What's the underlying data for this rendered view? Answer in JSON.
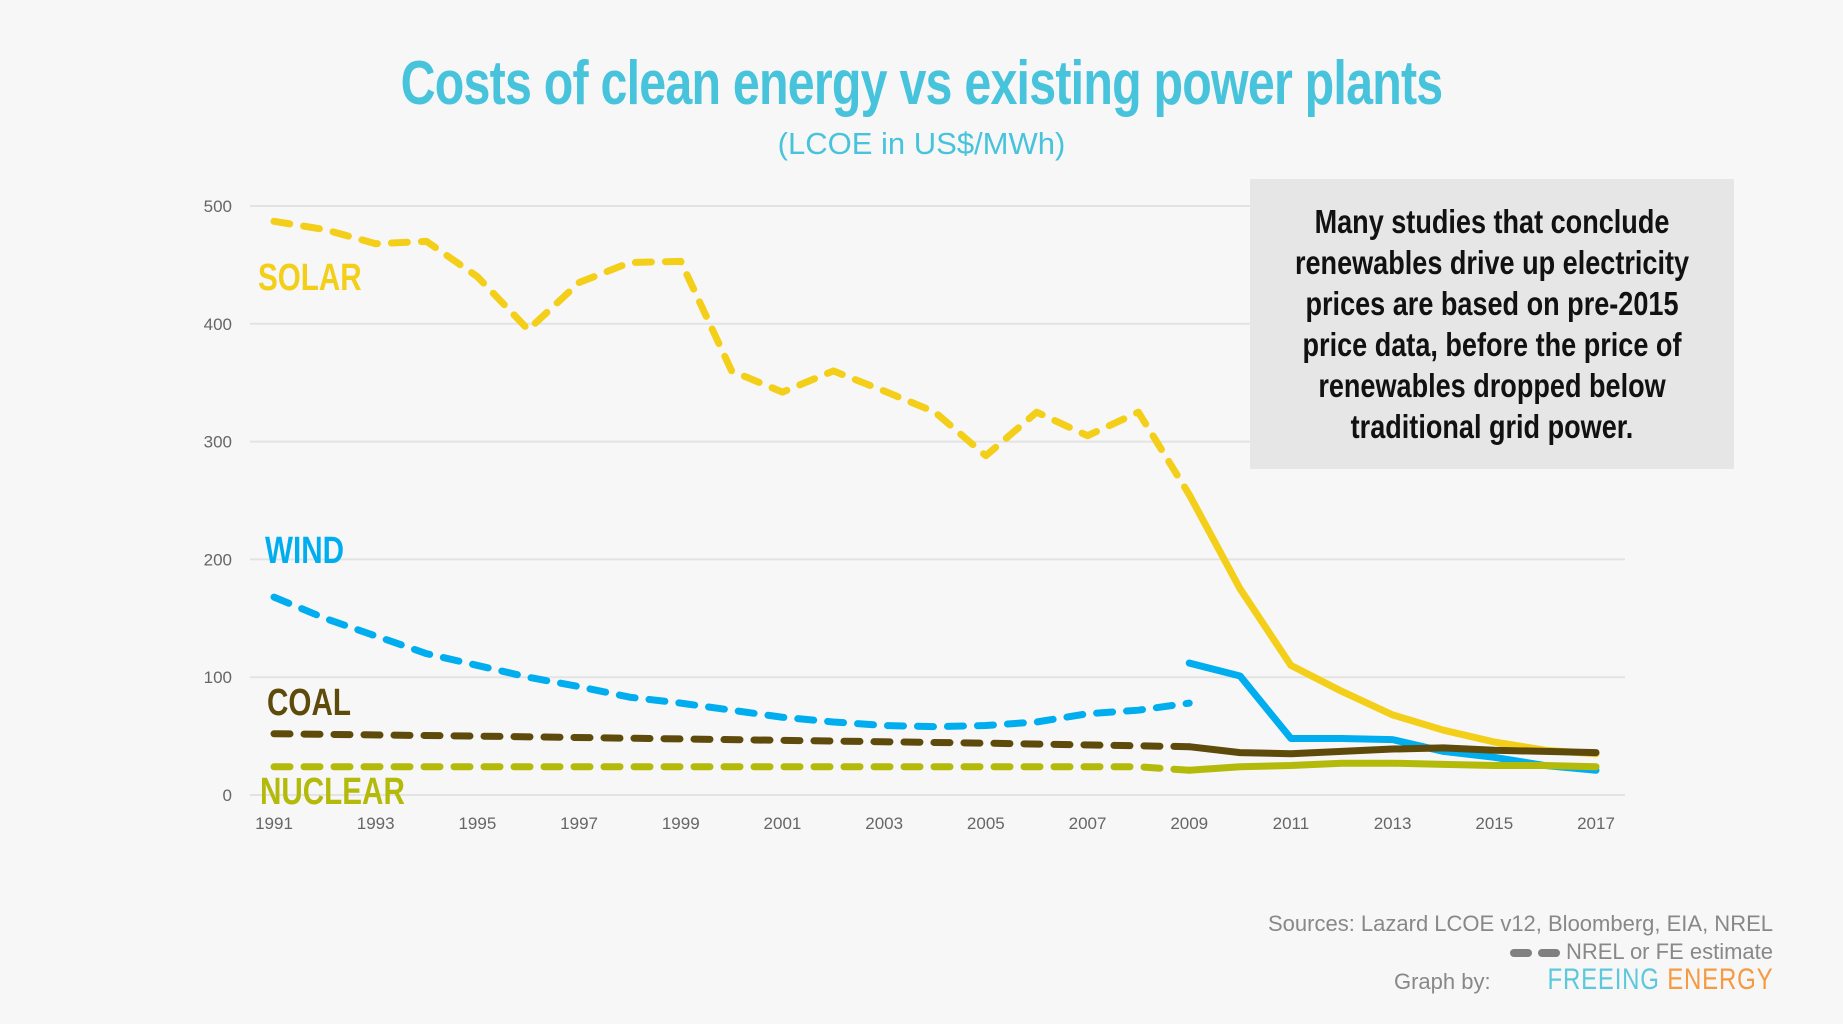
{
  "chart_data": {
    "type": "line",
    "title": "Costs of clean energy vs existing power plants",
    "subtitle": "(LCOE in US$/MWh)",
    "x_ticks": [
      "1991",
      "1993",
      "1995",
      "1997",
      "1999",
      "2001",
      "2003",
      "2005",
      "2007",
      "2009",
      "2011",
      "2013",
      "2015",
      "2017"
    ],
    "y_ticks": [
      "0",
      "100",
      "200",
      "300",
      "400",
      "500"
    ],
    "xlim": [
      1991,
      2017
    ],
    "ylim": [
      0,
      500
    ],
    "grid": "horizontal",
    "series": [
      {
        "name": "SOLAR",
        "color": "#f4cf1a",
        "estimate": {
          "x": [
            1991,
            1992,
            1993,
            1994,
            1995,
            1996,
            1997,
            1998,
            1999,
            2000,
            2001,
            2002,
            2003,
            2004,
            2005,
            2006,
            2007,
            2008,
            2009
          ],
          "y": [
            487,
            480,
            468,
            470,
            440,
            395,
            435,
            452,
            453,
            360,
            342,
            360,
            343,
            325,
            288,
            325,
            305,
            325,
            255
          ]
        },
        "actual": {
          "x": [
            2009,
            2010,
            2011,
            2012,
            2013,
            2014,
            2015,
            2016,
            2017
          ],
          "y": [
            255,
            175,
            110,
            88,
            68,
            55,
            45,
            38,
            35
          ]
        }
      },
      {
        "name": "WIND",
        "color": "#00aeef",
        "estimate": {
          "x": [
            1991,
            1992,
            1993,
            1994,
            1995,
            1996,
            1997,
            1998,
            1999,
            2000,
            2001,
            2002,
            2003,
            2004,
            2005,
            2006,
            2007,
            2008,
            2009
          ],
          "y": [
            168,
            150,
            135,
            120,
            110,
            100,
            92,
            83,
            78,
            72,
            66,
            62,
            59,
            58,
            59,
            62,
            69,
            72,
            78
          ]
        },
        "actual": {
          "x": [
            2009,
            2010,
            2011,
            2012,
            2013,
            2014,
            2015,
            2016,
            2017
          ],
          "y": [
            112,
            101,
            48,
            48,
            47,
            37,
            32,
            25,
            21
          ]
        }
      },
      {
        "name": "COAL",
        "color": "#5e4a0a",
        "estimate": {
          "x": [
            1991,
            1995,
            2000,
            2005,
            2009
          ],
          "y": [
            52,
            50,
            47,
            44,
            41
          ]
        },
        "actual": {
          "x": [
            2009,
            2010,
            2011,
            2012,
            2013,
            2014,
            2015,
            2016,
            2017
          ],
          "y": [
            41,
            36,
            35,
            37,
            39,
            40,
            38,
            37,
            36
          ]
        }
      },
      {
        "name": "NUCLEAR",
        "color": "#b3ba0a",
        "estimate": {
          "x": [
            1991,
            2000,
            2008,
            2009
          ],
          "y": [
            24,
            24,
            24,
            21
          ]
        },
        "actual": {
          "x": [
            2009,
            2010,
            2011,
            2012,
            2013,
            2014,
            2015,
            2016,
            2017
          ],
          "y": [
            21,
            24,
            25,
            27,
            27,
            26,
            25,
            25,
            24
          ]
        }
      }
    ],
    "legend": "NREL or FE estimate"
  },
  "callout": "Many studies that conclude renewables drive up electricity prices are based on pre-2015 price data, before the price of renewables dropped below traditional grid power.",
  "footer": {
    "sources": "Sources: Lazard LCOE v12, Bloomberg, EIA, NREL",
    "legend_label": "NREL or FE estimate",
    "graph_by": "Graph by:",
    "brand_1": "FREEING",
    "brand_2": "ENERGY"
  }
}
